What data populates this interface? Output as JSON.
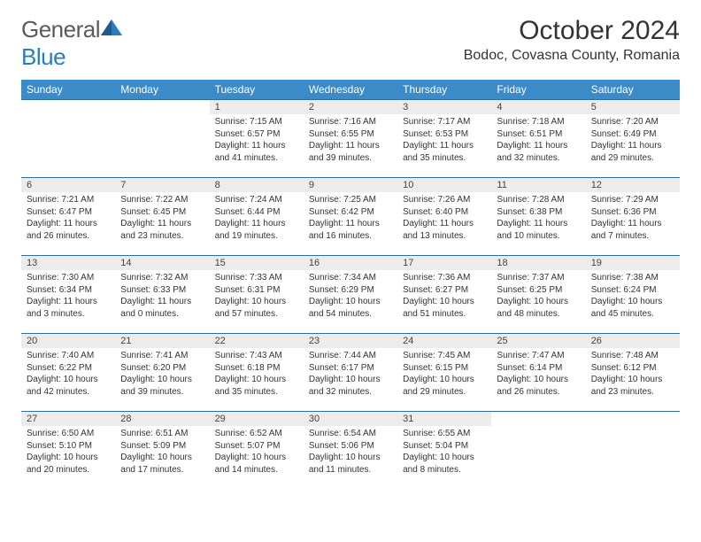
{
  "brand": {
    "word1": "General",
    "word2": "Blue"
  },
  "title": "October 2024",
  "location": "Bodoc, Covasna County, Romania",
  "colors": {
    "header_bg": "#3b8bc9",
    "header_text": "#ffffff",
    "row_divider": "#2e6fa3",
    "daynum_bg": "#ececec",
    "brand_gray": "#5a5a5a",
    "brand_blue": "#2b7cbf"
  },
  "weekdays": [
    "Sunday",
    "Monday",
    "Tuesday",
    "Wednesday",
    "Thursday",
    "Friday",
    "Saturday"
  ],
  "first_weekday_index": 2,
  "days": [
    {
      "n": 1,
      "sunrise": "7:15 AM",
      "sunset": "6:57 PM",
      "daylight": "11 hours and 41 minutes."
    },
    {
      "n": 2,
      "sunrise": "7:16 AM",
      "sunset": "6:55 PM",
      "daylight": "11 hours and 39 minutes."
    },
    {
      "n": 3,
      "sunrise": "7:17 AM",
      "sunset": "6:53 PM",
      "daylight": "11 hours and 35 minutes."
    },
    {
      "n": 4,
      "sunrise": "7:18 AM",
      "sunset": "6:51 PM",
      "daylight": "11 hours and 32 minutes."
    },
    {
      "n": 5,
      "sunrise": "7:20 AM",
      "sunset": "6:49 PM",
      "daylight": "11 hours and 29 minutes."
    },
    {
      "n": 6,
      "sunrise": "7:21 AM",
      "sunset": "6:47 PM",
      "daylight": "11 hours and 26 minutes."
    },
    {
      "n": 7,
      "sunrise": "7:22 AM",
      "sunset": "6:45 PM",
      "daylight": "11 hours and 23 minutes."
    },
    {
      "n": 8,
      "sunrise": "7:24 AM",
      "sunset": "6:44 PM",
      "daylight": "11 hours and 19 minutes."
    },
    {
      "n": 9,
      "sunrise": "7:25 AM",
      "sunset": "6:42 PM",
      "daylight": "11 hours and 16 minutes."
    },
    {
      "n": 10,
      "sunrise": "7:26 AM",
      "sunset": "6:40 PM",
      "daylight": "11 hours and 13 minutes."
    },
    {
      "n": 11,
      "sunrise": "7:28 AM",
      "sunset": "6:38 PM",
      "daylight": "11 hours and 10 minutes."
    },
    {
      "n": 12,
      "sunrise": "7:29 AM",
      "sunset": "6:36 PM",
      "daylight": "11 hours and 7 minutes."
    },
    {
      "n": 13,
      "sunrise": "7:30 AM",
      "sunset": "6:34 PM",
      "daylight": "11 hours and 3 minutes."
    },
    {
      "n": 14,
      "sunrise": "7:32 AM",
      "sunset": "6:33 PM",
      "daylight": "11 hours and 0 minutes."
    },
    {
      "n": 15,
      "sunrise": "7:33 AM",
      "sunset": "6:31 PM",
      "daylight": "10 hours and 57 minutes."
    },
    {
      "n": 16,
      "sunrise": "7:34 AM",
      "sunset": "6:29 PM",
      "daylight": "10 hours and 54 minutes."
    },
    {
      "n": 17,
      "sunrise": "7:36 AM",
      "sunset": "6:27 PM",
      "daylight": "10 hours and 51 minutes."
    },
    {
      "n": 18,
      "sunrise": "7:37 AM",
      "sunset": "6:25 PM",
      "daylight": "10 hours and 48 minutes."
    },
    {
      "n": 19,
      "sunrise": "7:38 AM",
      "sunset": "6:24 PM",
      "daylight": "10 hours and 45 minutes."
    },
    {
      "n": 20,
      "sunrise": "7:40 AM",
      "sunset": "6:22 PM",
      "daylight": "10 hours and 42 minutes."
    },
    {
      "n": 21,
      "sunrise": "7:41 AM",
      "sunset": "6:20 PM",
      "daylight": "10 hours and 39 minutes."
    },
    {
      "n": 22,
      "sunrise": "7:43 AM",
      "sunset": "6:18 PM",
      "daylight": "10 hours and 35 minutes."
    },
    {
      "n": 23,
      "sunrise": "7:44 AM",
      "sunset": "6:17 PM",
      "daylight": "10 hours and 32 minutes."
    },
    {
      "n": 24,
      "sunrise": "7:45 AM",
      "sunset": "6:15 PM",
      "daylight": "10 hours and 29 minutes."
    },
    {
      "n": 25,
      "sunrise": "7:47 AM",
      "sunset": "6:14 PM",
      "daylight": "10 hours and 26 minutes."
    },
    {
      "n": 26,
      "sunrise": "7:48 AM",
      "sunset": "6:12 PM",
      "daylight": "10 hours and 23 minutes."
    },
    {
      "n": 27,
      "sunrise": "6:50 AM",
      "sunset": "5:10 PM",
      "daylight": "10 hours and 20 minutes."
    },
    {
      "n": 28,
      "sunrise": "6:51 AM",
      "sunset": "5:09 PM",
      "daylight": "10 hours and 17 minutes."
    },
    {
      "n": 29,
      "sunrise": "6:52 AM",
      "sunset": "5:07 PM",
      "daylight": "10 hours and 14 minutes."
    },
    {
      "n": 30,
      "sunrise": "6:54 AM",
      "sunset": "5:06 PM",
      "daylight": "10 hours and 11 minutes."
    },
    {
      "n": 31,
      "sunrise": "6:55 AM",
      "sunset": "5:04 PM",
      "daylight": "10 hours and 8 minutes."
    }
  ],
  "labels": {
    "sunrise": "Sunrise: ",
    "sunset": "Sunset: ",
    "daylight": "Daylight: "
  }
}
